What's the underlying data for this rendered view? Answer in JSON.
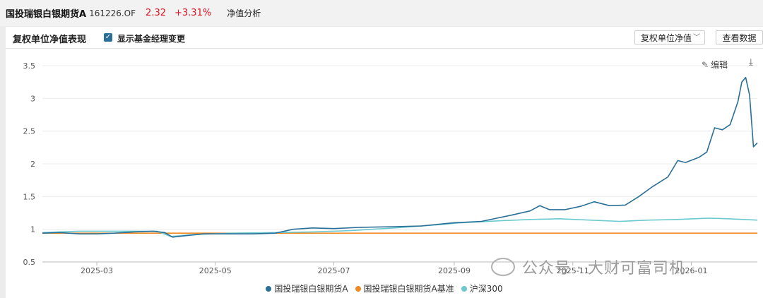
{
  "header": {
    "fund_name": "国投瑞银白银期货A",
    "fund_code": "161226.OF",
    "nav": "2.32",
    "change": "+3.31%",
    "tab": "净值分析"
  },
  "panel": {
    "title": "复权单位净值表现",
    "checkbox_label": "显示基金经理变更",
    "select_value": "复权单位净值",
    "button_label": "查看数据",
    "edit_label": "编辑"
  },
  "watermark": "公众号 · 大财可富司机",
  "colors": {
    "fund": "#2a6f97",
    "benchmark": "#f08a24",
    "index": "#6cc9cf",
    "red": "#d12222"
  },
  "chart_data": {
    "type": "line",
    "ylim": [
      0.5,
      3.5
    ],
    "yticks": [
      0.5,
      1,
      1.5,
      2,
      2.5,
      3,
      3.5
    ],
    "ytick_labels": [
      "0.5",
      "1",
      "1.5",
      "2",
      "2.5",
      "3",
      "3.5"
    ],
    "xlim": [
      "2025-02-01",
      "2026-02-04"
    ],
    "xticks": [
      "2025-03-01",
      "2025-05-01",
      "2025-07-01",
      "2025-09-01",
      "2025-11-01",
      "2026-01-01"
    ],
    "xtick_labels": [
      "2025-03",
      "2025-05",
      "2025-07",
      "2025-09",
      "2025-11",
      "2026-01"
    ],
    "legend_position": "bottom",
    "series": [
      {
        "name": "国投瑞银白银期货A",
        "color": "#2a6f97",
        "points": [
          [
            "2025-02-01",
            0.94
          ],
          [
            "2025-02-10",
            0.95
          ],
          [
            "2025-02-20",
            0.93
          ],
          [
            "2025-03-01",
            0.93
          ],
          [
            "2025-03-10",
            0.94
          ],
          [
            "2025-03-20",
            0.96
          ],
          [
            "2025-03-30",
            0.97
          ],
          [
            "2025-04-05",
            0.95
          ],
          [
            "2025-04-09",
            0.88
          ],
          [
            "2025-04-15",
            0.9
          ],
          [
            "2025-04-25",
            0.93
          ],
          [
            "2025-05-05",
            0.93
          ],
          [
            "2025-05-20",
            0.93
          ],
          [
            "2025-06-01",
            0.94
          ],
          [
            "2025-06-10",
            1.0
          ],
          [
            "2025-06-20",
            1.02
          ],
          [
            "2025-07-01",
            1.01
          ],
          [
            "2025-07-15",
            1.03
          ],
          [
            "2025-08-01",
            1.04
          ],
          [
            "2025-08-15",
            1.05
          ],
          [
            "2025-09-01",
            1.1
          ],
          [
            "2025-09-15",
            1.12
          ],
          [
            "2025-10-01",
            1.22
          ],
          [
            "2025-10-10",
            1.28
          ],
          [
            "2025-10-15",
            1.36
          ],
          [
            "2025-10-20",
            1.3
          ],
          [
            "2025-10-28",
            1.3
          ],
          [
            "2025-11-05",
            1.35
          ],
          [
            "2025-11-12",
            1.42
          ],
          [
            "2025-11-20",
            1.36
          ],
          [
            "2025-11-28",
            1.37
          ],
          [
            "2025-12-05",
            1.5
          ],
          [
            "2025-12-12",
            1.65
          ],
          [
            "2025-12-20",
            1.8
          ],
          [
            "2025-12-25",
            2.05
          ],
          [
            "2025-12-29",
            2.02
          ],
          [
            "2026-01-05",
            2.1
          ],
          [
            "2026-01-09",
            2.18
          ],
          [
            "2026-01-13",
            2.55
          ],
          [
            "2026-01-17",
            2.52
          ],
          [
            "2026-01-21",
            2.6
          ],
          [
            "2026-01-25",
            2.95
          ],
          [
            "2026-01-27",
            3.25
          ],
          [
            "2026-01-29",
            3.32
          ],
          [
            "2026-01-31",
            3.05
          ],
          [
            "2026-02-02",
            2.26
          ],
          [
            "2026-02-04",
            2.32
          ]
        ]
      },
      {
        "name": "国投瑞银白银期货A基准",
        "color": "#f08a24",
        "points": [
          [
            "2025-02-01",
            0.94
          ],
          [
            "2025-06-01",
            0.94
          ],
          [
            "2025-10-01",
            0.94
          ],
          [
            "2026-02-04",
            0.94
          ]
        ]
      },
      {
        "name": "沪深300",
        "color": "#6cc9cf",
        "points": [
          [
            "2025-02-01",
            0.95
          ],
          [
            "2025-02-20",
            0.97
          ],
          [
            "2025-03-15",
            0.97
          ],
          [
            "2025-04-01",
            0.97
          ],
          [
            "2025-04-08",
            0.89
          ],
          [
            "2025-04-20",
            0.92
          ],
          [
            "2025-05-10",
            0.94
          ],
          [
            "2025-06-01",
            0.95
          ],
          [
            "2025-06-20",
            0.96
          ],
          [
            "2025-07-10",
            0.98
          ],
          [
            "2025-08-01",
            1.02
          ],
          [
            "2025-08-20",
            1.06
          ],
          [
            "2025-09-05",
            1.1
          ],
          [
            "2025-09-25",
            1.13
          ],
          [
            "2025-10-10",
            1.15
          ],
          [
            "2025-10-25",
            1.16
          ],
          [
            "2025-11-10",
            1.14
          ],
          [
            "2025-11-25",
            1.12
          ],
          [
            "2025-12-10",
            1.14
          ],
          [
            "2025-12-25",
            1.15
          ],
          [
            "2026-01-10",
            1.17
          ],
          [
            "2026-01-20",
            1.16
          ],
          [
            "2026-02-04",
            1.14
          ]
        ]
      }
    ]
  }
}
